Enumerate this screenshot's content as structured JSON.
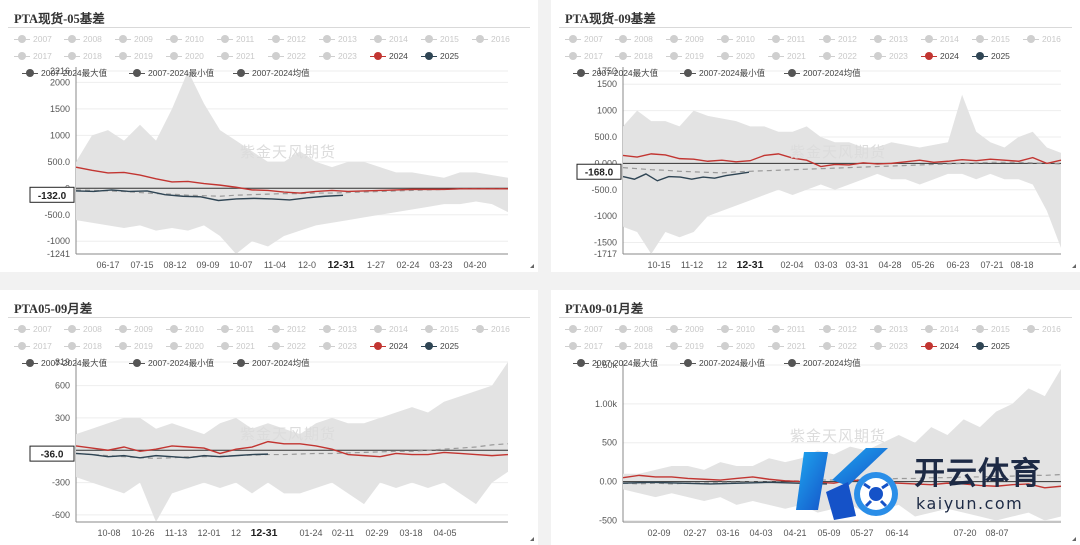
{
  "legend_years_row1": [
    "2007",
    "2008",
    "2009",
    "2010",
    "2011",
    "2012",
    "2013",
    "2014",
    "2015",
    "2016"
  ],
  "legend_years_row2": [
    "2017",
    "2018",
    "2019",
    "2020",
    "2021",
    "2022",
    "2023"
  ],
  "legend_active": [
    {
      "label": "2024",
      "color": "#c23531"
    },
    {
      "label": "2025",
      "color": "#2f4554"
    }
  ],
  "legend_stats": [
    "2007-2024最大值",
    "2007-2024最小值",
    "2007-2024均值"
  ],
  "watermark": "紫金天风期货",
  "brand": {
    "name": "开云体育",
    "url": "kaiyun.com"
  },
  "chart_data": [
    {
      "type": "line",
      "title": "PTA现货-05基差",
      "ylim": [
        -1241,
        2216
      ],
      "y_ticks": [
        "2216",
        "2000",
        "1500",
        "1000",
        "500.0",
        "0",
        "-500.0",
        "-1000",
        "-1241"
      ],
      "x_ticks": [
        "06-17",
        "07-15",
        "08-12",
        "09-09",
        "10-07",
        "11-04",
        "12-0",
        "12-31",
        "1-27",
        "02-24",
        "03-23",
        "04-20"
      ],
      "current_label": "-132.0",
      "series": [
        {
          "name": "2024",
          "color": "#c23531",
          "values": [
            400,
            340,
            290,
            300,
            250,
            180,
            120,
            130,
            90,
            60,
            20,
            -30,
            -40,
            -70,
            -90,
            -60,
            -40,
            -60,
            -50,
            -40,
            -30,
            -20,
            -20,
            -20,
            -10,
            -10,
            -10,
            -10
          ]
        },
        {
          "name": "2025",
          "color": "#2f4554",
          "values": [
            -50,
            -60,
            -30,
            -60,
            -50,
            -120,
            -150,
            -160,
            -230,
            -200,
            -190,
            -200,
            -220,
            -180,
            -150,
            -132
          ]
        },
        {
          "name": "2007-2024最大值",
          "values": [
            500,
            1000,
            1100,
            900,
            1200,
            900,
            1500,
            2216,
            1600,
            1100,
            900,
            700,
            500,
            500,
            700,
            500,
            400,
            500,
            500,
            400,
            300,
            300,
            250,
            200,
            300,
            300,
            250,
            200
          ]
        },
        {
          "name": "2007-2024最小值",
          "values": [
            -600,
            -650,
            -700,
            -750,
            -700,
            -800,
            -750,
            -800,
            -700,
            -900,
            -1241,
            -1000,
            -1100,
            -900,
            -800,
            -700,
            -650,
            -600,
            -550,
            -500,
            -450,
            -400,
            -350,
            -300,
            -300,
            -250,
            -300,
            -450
          ]
        },
        {
          "name": "2007-2024均值",
          "values": [
            -30,
            -40,
            -50,
            -60,
            -80,
            -100,
            -110,
            -130,
            -140,
            -150,
            -130,
            -120,
            -110,
            -100,
            -100,
            -90,
            -90,
            -80,
            -70,
            -60,
            -50,
            -40,
            -30,
            -20,
            -10,
            -10,
            -10,
            -10
          ]
        }
      ]
    },
    {
      "type": "line",
      "title": "PTA现货-09基差",
      "ylim": [
        -1717,
        1750
      ],
      "y_ticks": [
        "1750",
        "1500",
        "1000",
        "500.0",
        "0.000",
        "-500.0",
        "-1000",
        "-1500",
        "-1717"
      ],
      "x_ticks": [
        "10-15",
        "11-12",
        "12",
        "12-31",
        "02-04",
        "03-03",
        "03-31",
        "04-28",
        "05-26",
        "06-23",
        "07-21",
        "08-18"
      ],
      "current_label": "-168.0",
      "series": [
        {
          "name": "2024",
          "color": "#c23531",
          "values": [
            150,
            120,
            180,
            160,
            90,
            80,
            40,
            60,
            30,
            50,
            150,
            180,
            100,
            60,
            -60,
            -20,
            -30,
            10,
            -10,
            0,
            30,
            60,
            20,
            40,
            70,
            50,
            80,
            60,
            40,
            110,
            0,
            60
          ]
        },
        {
          "name": "2025",
          "color": "#2f4554",
          "values": [
            -250,
            -300,
            -200,
            -330,
            -250,
            -260,
            -300,
            -260,
            -280,
            -230,
            -200,
            -168
          ]
        },
        {
          "name": "2007-2024最大值",
          "values": [
            700,
            1000,
            800,
            800,
            700,
            1000,
            900,
            850,
            800,
            700,
            700,
            600,
            600,
            700,
            500,
            400,
            400,
            300,
            300,
            400,
            350,
            300,
            350,
            400,
            1300,
            600,
            400,
            300,
            500,
            600,
            300,
            200
          ]
        },
        {
          "name": "2007-2024最小值",
          "values": [
            -1200,
            -1300,
            -1717,
            -1300,
            -1400,
            -1300,
            -1000,
            -900,
            -800,
            -700,
            -600,
            -500,
            -600,
            -500,
            -400,
            -500,
            -400,
            -300,
            -200,
            -300,
            -300,
            -400,
            -300,
            -200,
            -200,
            -300,
            -200,
            -300,
            -300,
            -400,
            -900,
            -1600
          ]
        },
        {
          "name": "2007-2024均值",
          "values": [
            -80,
            -100,
            -120,
            -130,
            -150,
            -160,
            -170,
            -180,
            -160,
            -150,
            -140,
            -130,
            -120,
            -110,
            -100,
            -90,
            -80,
            -70,
            -60,
            -50,
            -40,
            -30,
            -20,
            -10,
            0,
            10,
            20,
            20,
            20,
            10,
            0,
            -10
          ]
        }
      ]
    },
    {
      "type": "line",
      "title": "PTA05-09月差",
      "ylim": [
        -666,
        819
      ],
      "y_ticks": [
        "819",
        "600",
        "300",
        "0",
        "-300",
        "-600"
      ],
      "x_ticks": [
        "10-08",
        "10-26",
        "11-13",
        "12-01",
        "12",
        "12-31",
        "01-24",
        "02-11",
        "02-29",
        "03-18",
        "04-05"
      ],
      "current_label": "-36.0",
      "series": [
        {
          "name": "2024",
          "color": "#c23531",
          "values": [
            40,
            20,
            0,
            30,
            -10,
            10,
            40,
            30,
            20,
            -30,
            10,
            30,
            80,
            60,
            60,
            40,
            10,
            -40,
            -50,
            -60,
            -30,
            -40,
            -40,
            -20,
            -30,
            -40,
            -50,
            -40
          ]
        },
        {
          "name": "2025",
          "color": "#2f4554",
          "values": [
            -30,
            -40,
            -60,
            -50,
            -70,
            -50,
            -60,
            -70,
            -50,
            -60,
            -50,
            -40,
            -36
          ]
        },
        {
          "name": "2007-2024最大值",
          "values": [
            150,
            200,
            250,
            300,
            300,
            200,
            250,
            200,
            150,
            250,
            300,
            200,
            250,
            200,
            150,
            250,
            300,
            250,
            250,
            300,
            350,
            400,
            350,
            450,
            500,
            550,
            600,
            819
          ]
        },
        {
          "name": "2007-2024最小值",
          "values": [
            -250,
            -300,
            -350,
            -400,
            -300,
            -666,
            -400,
            -350,
            -300,
            -350,
            -300,
            -400,
            -300,
            -400,
            -400,
            -350,
            -300,
            -400,
            -500,
            -300,
            -350,
            -300,
            -350,
            -300,
            -400,
            -500,
            -300,
            -200
          ]
        },
        {
          "name": "2007-2024均值",
          "values": [
            -30,
            -40,
            -50,
            -60,
            -70,
            -75,
            -70,
            -60,
            -60,
            -55,
            -50,
            -45,
            -40,
            -40,
            -35,
            -30,
            -30,
            -25,
            -20,
            -15,
            -10,
            -10,
            0,
            10,
            20,
            30,
            50,
            60
          ]
        }
      ]
    },
    {
      "type": "line",
      "title": "PTA09-01月差",
      "ylim": [
        -520,
        1500
      ],
      "y_ticks": [
        "1.50k",
        "1.00k",
        "500",
        "0.00",
        "-500"
      ],
      "x_ticks": [
        "02-09",
        "02-27",
        "03-16",
        "04-03",
        "04-21",
        "05-09",
        "05-27",
        "06-14",
        "07-20",
        "08-07"
      ],
      "series": [
        {
          "name": "2024",
          "color": "#c23531",
          "values": [
            50,
            80,
            60,
            60,
            40,
            30,
            20,
            40,
            60,
            30,
            10,
            0,
            -10,
            -20,
            20,
            10,
            -10,
            -20,
            -30,
            -40,
            -20,
            -30,
            -50,
            -60,
            -40,
            -30,
            -80,
            -60
          ]
        },
        {
          "name": "2025",
          "color": "#2f4554",
          "values": [
            -20,
            -10,
            -20,
            -30,
            -20,
            -10,
            -20,
            -30
          ]
        },
        {
          "name": "2007-2024最大值",
          "values": [
            100,
            100,
            150,
            200,
            200,
            150,
            250,
            200,
            200,
            300,
            250,
            300,
            400,
            350,
            450,
            400,
            500,
            600,
            500,
            700,
            600,
            800,
            700,
            900,
            1000,
            1200,
            1100,
            1450
          ]
        },
        {
          "name": "2007-2024最小值",
          "values": [
            -100,
            -150,
            -200,
            -150,
            -200,
            -250,
            -200,
            -300,
            -250,
            -300,
            -350,
            -300,
            -400,
            -350,
            -300,
            -400,
            -350,
            -300,
            -450,
            -400,
            -350,
            -400,
            -450,
            -500,
            -450,
            -400,
            -500,
            -450
          ]
        },
        {
          "name": "2007-2024均值",
          "values": [
            -20,
            -30,
            -20,
            -30,
            -20,
            -20,
            -10,
            -10,
            0,
            0,
            10,
            10,
            20,
            20,
            20,
            30,
            30,
            40,
            40,
            50,
            50,
            60,
            60,
            70,
            70,
            80,
            80,
            90
          ]
        }
      ]
    }
  ]
}
